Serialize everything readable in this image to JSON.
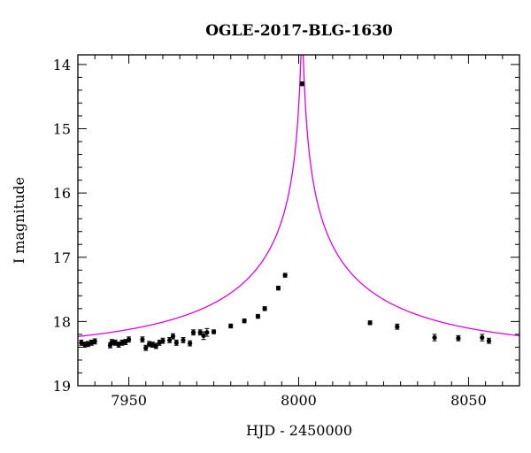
{
  "chart_data": {
    "type": "scatter",
    "title": "OGLE-2017-BLG-1630",
    "xlabel": "HJD - 2450000",
    "ylabel": "I magnitude",
    "xlim": [
      7935,
      8065
    ],
    "ylim": [
      19,
      13.85
    ],
    "y_inverted": true,
    "x_ticks": [
      7950,
      8000,
      8050
    ],
    "y_ticks": [
      14,
      15,
      16,
      17,
      18,
      19
    ],
    "grid": false,
    "legend": "none",
    "model_curve": {
      "color": "#e000e0",
      "t0": 8001.0,
      "u0": 0.005,
      "tE": 80,
      "baseline_mag": 18.45,
      "blend_fraction": 0.44
    },
    "series": [
      {
        "marker_color": "#000000",
        "x": [
          7936,
          7937,
          7938,
          7939,
          7940,
          7944.5,
          7945,
          7946,
          7947,
          7948,
          7949,
          7950,
          7954,
          7955,
          7956,
          7957,
          7958,
          7959,
          7960,
          7962,
          7963,
          7964,
          7966,
          7968,
          7969,
          7971,
          7972,
          7973,
          7975,
          7980,
          7984,
          7988,
          7990,
          7994,
          7996,
          8001,
          8021,
          8029,
          8040,
          8047,
          8054,
          8056
        ],
        "y": [
          18.33,
          18.36,
          18.35,
          18.33,
          18.31,
          18.37,
          18.32,
          18.33,
          18.36,
          18.33,
          18.32,
          18.28,
          18.28,
          18.41,
          18.35,
          18.36,
          18.38,
          18.33,
          18.3,
          18.29,
          18.23,
          18.33,
          18.29,
          18.34,
          18.17,
          18.17,
          18.22,
          18.17,
          18.16,
          18.07,
          17.99,
          17.92,
          17.8,
          17.48,
          17.28,
          14.3,
          18.02,
          18.08,
          18.25,
          18.26,
          18.25,
          18.3
        ],
        "yerr": [
          0.04,
          0.04,
          0.04,
          0.04,
          0.04,
          0.04,
          0.04,
          0.04,
          0.04,
          0.04,
          0.04,
          0.04,
          0.04,
          0.04,
          0.04,
          0.04,
          0.04,
          0.04,
          0.04,
          0.04,
          0.04,
          0.04,
          0.04,
          0.04,
          0.04,
          0.04,
          0.06,
          0.06,
          0.03,
          0.03,
          0.03,
          0.03,
          0.03,
          0.03,
          0.03,
          0.03,
          0.03,
          0.04,
          0.05,
          0.04,
          0.05,
          0.04
        ]
      }
    ]
  }
}
